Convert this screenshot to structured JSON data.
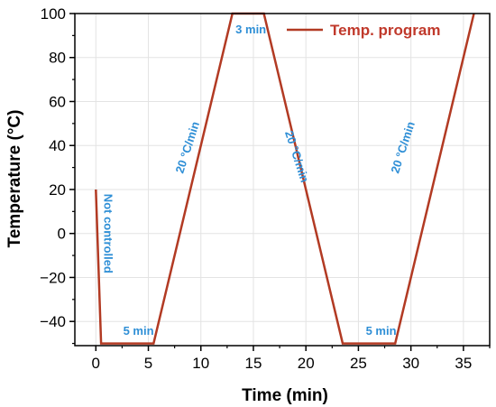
{
  "chart_data": {
    "type": "line",
    "xlabel": "Time (min)",
    "ylabel": "Temperature (°C)",
    "xlim": [
      -2,
      37.5
    ],
    "ylim": [
      -51,
      100
    ],
    "x_ticks": [
      0,
      5,
      10,
      15,
      20,
      25,
      30,
      35
    ],
    "y_ticks": [
      -40,
      -20,
      0,
      20,
      40,
      60,
      80,
      100
    ],
    "x_tick_labels": [
      "0",
      "5",
      "10",
      "15",
      "20",
      "25",
      "30",
      "35"
    ],
    "y_tick_labels": [
      "−40",
      "−20",
      "0",
      "20",
      "40",
      "60",
      "80",
      "100"
    ],
    "grid": true,
    "legend_position": "top-right",
    "series": [
      {
        "name": "Temp. program",
        "color": "#b23a23",
        "x": [
          0,
          0.5,
          5.5,
          13,
          16,
          23.5,
          28.5,
          36
        ],
        "y": [
          20,
          -50,
          -50,
          100,
          100,
          -50,
          -50,
          100
        ]
      }
    ],
    "annotations": [
      {
        "text": "Not controlled",
        "x": 0.8,
        "y": 18,
        "rotation": 90
      },
      {
        "text": "5 min",
        "x": 2.6,
        "y": -46,
        "rotation": 0
      },
      {
        "text": "20 °C/min",
        "x": 8.3,
        "y": 27,
        "rotation": -72
      },
      {
        "text": "3 min",
        "x": 13.3,
        "y": 91,
        "rotation": 0
      },
      {
        "text": "20 °C/min",
        "x": 18.0,
        "y": 46,
        "rotation": 72
      },
      {
        "text": "5 min",
        "x": 25.7,
        "y": -46,
        "rotation": 0
      },
      {
        "text": "20 °C/min",
        "x": 28.8,
        "y": 27,
        "rotation": -72
      }
    ]
  }
}
